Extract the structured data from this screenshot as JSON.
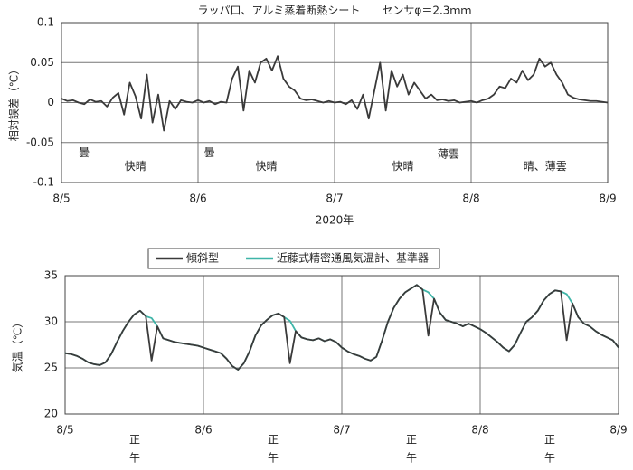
{
  "chart_data": [
    {
      "type": "line",
      "title": "ラッパ口、アルミ蒸着断熱シート　　センサφ＝2.3ｍｍ",
      "y_label": "相対誤差（℃）",
      "x_label": "2020年",
      "xlim": [
        0,
        96
      ],
      "xticks": [
        {
          "value": 0,
          "label": "8/5"
        },
        {
          "value": 24,
          "label": "8/6"
        },
        {
          "value": 48,
          "label": "8/7"
        },
        {
          "value": 72,
          "label": "8/8"
        },
        {
          "value": 96,
          "label": "8/9"
        }
      ],
      "ylim": [
        -0.1,
        0.1
      ],
      "yticks": [
        -0.1,
        -0.05,
        0,
        0.05,
        0.1
      ],
      "grid": true,
      "x": [
        0,
        1,
        2,
        3,
        4,
        5,
        6,
        7,
        8,
        9,
        10,
        11,
        12,
        13,
        14,
        15,
        16,
        17,
        18,
        19,
        20,
        21,
        22,
        23,
        24,
        25,
        26,
        27,
        28,
        29,
        30,
        31,
        32,
        33,
        34,
        35,
        36,
        37,
        38,
        39,
        40,
        41,
        42,
        43,
        44,
        45,
        46,
        47,
        48,
        49,
        50,
        51,
        52,
        53,
        54,
        55,
        56,
        57,
        58,
        59,
        60,
        61,
        62,
        63,
        64,
        65,
        66,
        67,
        68,
        69,
        70,
        71,
        72,
        73,
        74,
        75,
        76,
        77,
        78,
        79,
        80,
        81,
        82,
        83,
        84,
        85,
        86,
        87,
        88,
        89,
        90,
        91,
        92,
        93,
        94,
        95,
        96
      ],
      "series": [
        {
          "color": "#3a3a3a",
          "values": [
            0.005,
            0.002,
            0.003,
            0.0,
            -0.002,
            0.004,
            0.001,
            0.002,
            -0.005,
            0.006,
            0.012,
            -0.015,
            0.025,
            0.008,
            -0.02,
            0.035,
            -0.025,
            0.01,
            -0.035,
            0.002,
            -0.008,
            0.003,
            0.001,
            0.0,
            0.003,
            0.0,
            0.002,
            -0.002,
            0.001,
            0.0,
            0.03,
            0.045,
            -0.01,
            0.04,
            0.025,
            0.05,
            0.055,
            0.04,
            0.058,
            0.03,
            0.02,
            0.015,
            0.005,
            0.003,
            0.004,
            0.002,
            0.0,
            0.002,
            0.0,
            0.001,
            -0.002,
            0.003,
            -0.008,
            0.01,
            -0.02,
            0.015,
            0.05,
            -0.01,
            0.04,
            0.02,
            0.035,
            0.01,
            0.025,
            0.015,
            0.005,
            0.01,
            0.003,
            0.004,
            0.002,
            0.003,
            0.0,
            0.001,
            0.002,
            0.0,
            0.003,
            0.005,
            0.01,
            0.02,
            0.018,
            0.03,
            0.025,
            0.04,
            0.028,
            0.035,
            0.055,
            0.045,
            0.05,
            0.035,
            0.025,
            0.01,
            0.006,
            0.004,
            0.003,
            0.002,
            0.002,
            0.001,
            0.0
          ]
        }
      ],
      "annotations": [
        {
          "text": "曇",
          "x": 4,
          "y": -0.063
        },
        {
          "text": "快晴",
          "x": 13,
          "y": -0.08
        },
        {
          "text": "曇",
          "x": 26,
          "y": -0.063
        },
        {
          "text": "快晴",
          "x": 36,
          "y": -0.08
        },
        {
          "text": "快晴",
          "x": 60,
          "y": -0.08
        },
        {
          "text": "薄雲",
          "x": 68,
          "y": -0.065
        },
        {
          "text": "晴、薄雲",
          "x": 85,
          "y": -0.08
        }
      ]
    },
    {
      "type": "line",
      "y_label": "気温（℃）",
      "xlim": [
        0,
        96
      ],
      "xticks": [
        {
          "value": 0,
          "label": "8/5"
        },
        {
          "value": 24,
          "label": "8/6"
        },
        {
          "value": 48,
          "label": "8/7"
        },
        {
          "value": 72,
          "label": "8/8"
        },
        {
          "value": 96,
          "label": "8/9"
        }
      ],
      "ylim": [
        20,
        35
      ],
      "yticks": [
        20,
        25,
        30,
        35
      ],
      "grid": true,
      "legend": "top",
      "x": [
        0,
        1,
        2,
        3,
        4,
        5,
        6,
        7,
        8,
        9,
        10,
        11,
        12,
        13,
        14,
        15,
        16,
        17,
        18,
        19,
        20,
        21,
        22,
        23,
        24,
        25,
        26,
        27,
        28,
        29,
        30,
        31,
        32,
        33,
        34,
        35,
        36,
        37,
        38,
        39,
        40,
        41,
        42,
        43,
        44,
        45,
        46,
        47,
        48,
        49,
        50,
        51,
        52,
        53,
        54,
        55,
        56,
        57,
        58,
        59,
        60,
        61,
        62,
        63,
        64,
        65,
        66,
        67,
        68,
        69,
        70,
        71,
        72,
        73,
        74,
        75,
        76,
        77,
        78,
        79,
        80,
        81,
        82,
        83,
        84,
        85,
        86,
        87,
        88,
        89,
        90,
        91,
        92,
        93,
        94,
        95,
        96
      ],
      "series": [
        {
          "name": "傾斜型",
          "color": "#3a3a3a",
          "values": [
            26.6,
            26.5,
            26.3,
            26.0,
            25.6,
            25.4,
            25.3,
            25.6,
            26.5,
            27.8,
            29.0,
            30.0,
            30.8,
            31.2,
            30.6,
            25.8,
            29.5,
            28.2,
            28.0,
            27.8,
            27.7,
            27.6,
            27.5,
            27.4,
            27.2,
            27.0,
            26.8,
            26.6,
            26.0,
            25.2,
            24.8,
            25.5,
            26.8,
            28.5,
            29.6,
            30.2,
            30.7,
            30.9,
            30.5,
            25.5,
            29.0,
            28.3,
            28.1,
            28.0,
            28.2,
            27.9,
            28.1,
            27.8,
            27.2,
            26.8,
            26.5,
            26.3,
            26.0,
            25.8,
            26.2,
            28.0,
            30.0,
            31.5,
            32.5,
            33.2,
            33.6,
            34.0,
            33.5,
            28.5,
            32.5,
            31.0,
            30.2,
            30.0,
            29.8,
            29.5,
            29.8,
            29.5,
            29.2,
            28.8,
            28.3,
            27.8,
            27.2,
            26.8,
            27.5,
            28.8,
            30.0,
            30.5,
            31.2,
            32.3,
            33.0,
            33.4,
            33.3,
            28.0,
            32.0,
            30.5,
            29.8,
            29.5,
            29.0,
            28.6,
            28.3,
            28.0,
            27.2
          ]
        },
        {
          "name": "近藤式精密通風気温計、基準器",
          "color": "#3fb5a8",
          "values": [
            26.6,
            26.5,
            26.3,
            26.0,
            25.6,
            25.4,
            25.3,
            25.6,
            26.5,
            27.8,
            29.0,
            30.0,
            30.8,
            31.2,
            30.6,
            30.4,
            29.5,
            28.2,
            28.0,
            27.8,
            27.7,
            27.6,
            27.5,
            27.4,
            27.2,
            27.0,
            26.8,
            26.6,
            26.0,
            25.2,
            24.8,
            25.5,
            26.8,
            28.5,
            29.6,
            30.2,
            30.7,
            30.9,
            30.5,
            30.1,
            29.0,
            28.3,
            28.1,
            28.0,
            28.2,
            27.9,
            28.1,
            27.8,
            27.2,
            26.8,
            26.5,
            26.3,
            26.0,
            25.8,
            26.2,
            28.0,
            30.0,
            31.5,
            32.5,
            33.2,
            33.6,
            34.0,
            33.5,
            33.2,
            32.5,
            31.0,
            30.2,
            30.0,
            29.8,
            29.5,
            29.8,
            29.5,
            29.2,
            28.8,
            28.3,
            27.8,
            27.2,
            26.8,
            27.5,
            28.8,
            30.0,
            30.5,
            31.2,
            32.3,
            33.0,
            33.4,
            33.3,
            33.0,
            32.0,
            30.5,
            29.8,
            29.5,
            29.0,
            28.6,
            28.3,
            28.0,
            27.2
          ]
        }
      ],
      "annotations": [
        {
          "text": "正午",
          "x": 12
        },
        {
          "text": "正午",
          "x": 36
        },
        {
          "text": "正午",
          "x": 60
        },
        {
          "text": "正午",
          "x": 84
        }
      ]
    }
  ]
}
